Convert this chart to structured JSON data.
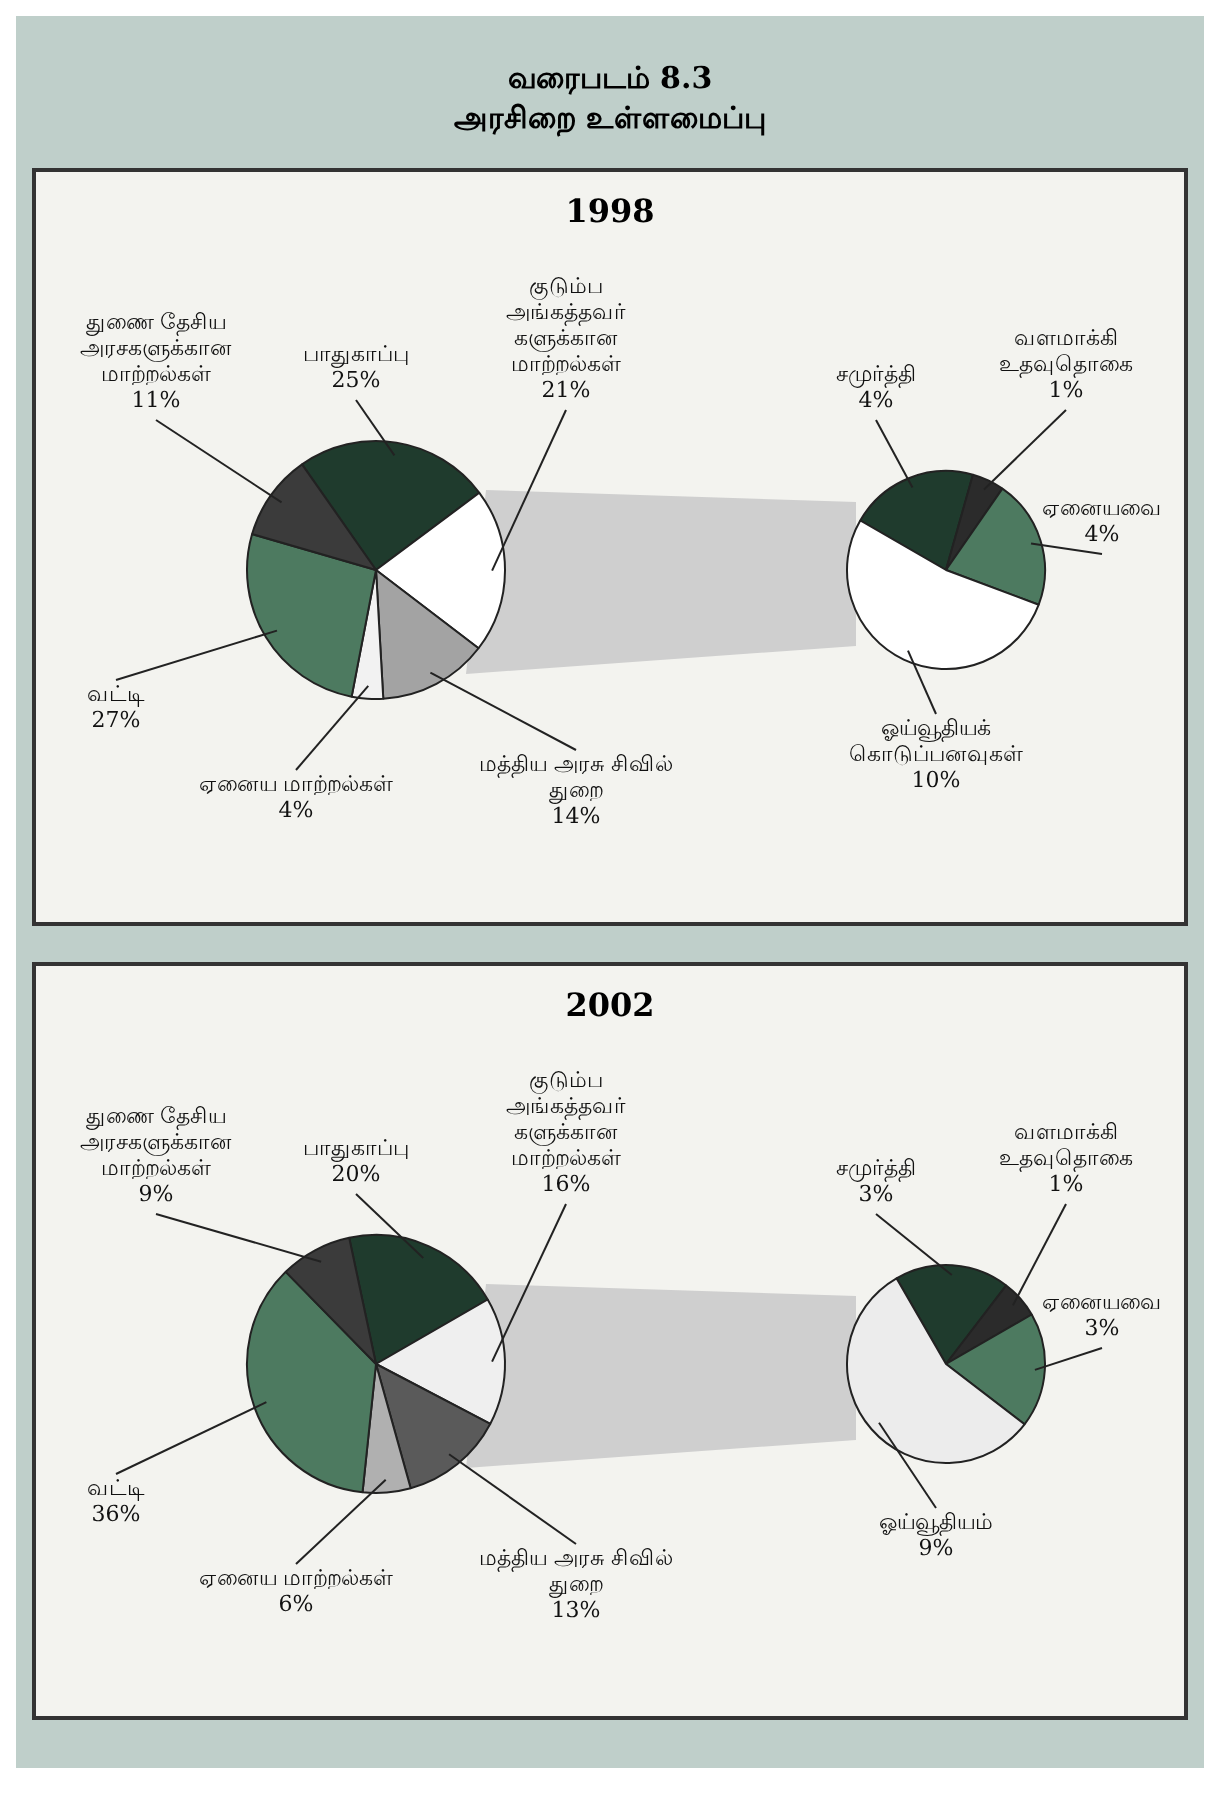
{
  "chart_data": [
    {
      "type": "pie",
      "title": "1998",
      "annotations": [
        "வரைபடம் 8.3",
        "அரசிறை உள்ளமைப்பு"
      ],
      "legend": false,
      "categories": [
        "பாதுகாப்பு",
        "குடும்ப அங்கத்தவர் களுக்கான மாற்றல்கள்",
        "மத்திய அரசு சிவில் துறை",
        "ஏனைய மாற்றல்கள்",
        "வட்டி",
        "துணை தேசிய அரசகளுக்கான மாற்றல்கள்"
      ],
      "values": [
        25,
        21,
        14,
        4,
        27,
        11
      ],
      "value_labels": [
        "25%",
        "21%",
        "14%",
        "4%",
        "27%",
        "11%"
      ],
      "colors": [
        "#1f3b2d",
        "#ffffff",
        "#a3a3a3",
        "#f2f2f2",
        "#4d7a60",
        "#3b3b3b"
      ]
    },
    {
      "type": "pie",
      "legend": false,
      "categories": [
        "சமுர்த்தி",
        "வளமாக்கி உதவுதொகை",
        "ஏனையவை",
        "ஓய்வூதியக் கொடுப்பனவுகள்"
      ],
      "values": [
        4,
        1,
        4,
        10
      ],
      "value_labels": [
        "4%",
        "1%",
        "4%",
        "10%"
      ],
      "colors": [
        "#1f3b2d",
        "#2b2b2b",
        "#4d7a60",
        "#ffffff"
      ]
    },
    {
      "type": "pie",
      "title": "2002",
      "legend": false,
      "categories": [
        "பாதுகாப்பு",
        "குடும்ப அங்கத்தவர் களுக்கான மாற்றல்கள்",
        "மத்திய அரசு சிவில் துறை",
        "ஏனைய மாற்றல்கள்",
        "வட்டி",
        "துணை தேசிய அரசகளுக்கான மாற்றல்கள்"
      ],
      "values": [
        20,
        16,
        13,
        6,
        36,
        9
      ],
      "value_labels": [
        "20%",
        "16%",
        "13%",
        "6%",
        "36%",
        "9%"
      ],
      "colors": [
        "#1f3b2d",
        "#efefef",
        "#5a5a5a",
        "#b0b0b0",
        "#4d7a60",
        "#3b3b3b"
      ]
    },
    {
      "type": "pie",
      "legend": false,
      "categories": [
        "சமுர்த்தி",
        "வளமாக்கி உதவுதொகை",
        "ஏனையவை",
        "ஓய்வூதியம்"
      ],
      "values": [
        3,
        1,
        3,
        9
      ],
      "value_labels": [
        "3%",
        "1%",
        "3%",
        "9%"
      ],
      "colors": [
        "#1f3b2d",
        "#2b2b2b",
        "#4d7a60",
        "#ececec"
      ]
    }
  ]
}
